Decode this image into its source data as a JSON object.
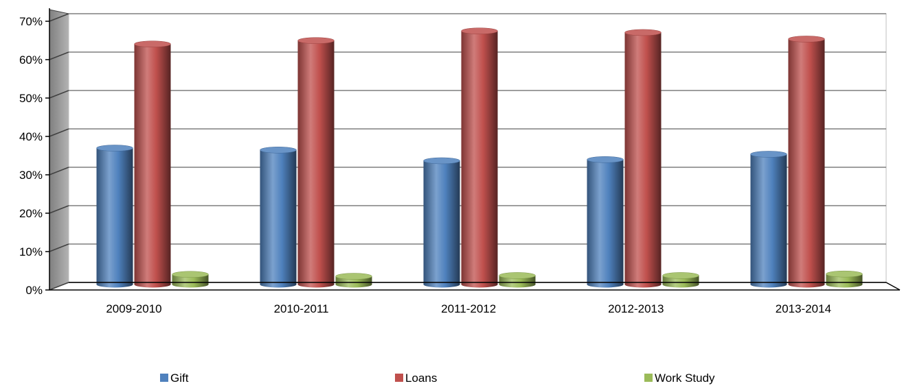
{
  "chart_data": {
    "type": "bar",
    "categories": [
      "2009-2010",
      "2010-2011",
      "2011-2012",
      "2012-2013",
      "2013-2014"
    ],
    "series": [
      {
        "name": "Gift",
        "values": [
          35,
          34.5,
          31.7,
          32,
          33.4
        ],
        "color": "#4F81BD"
      },
      {
        "name": "Loans",
        "values": [
          62.1,
          63,
          65.5,
          65.1,
          63.4
        ],
        "color": "#C0504D"
      },
      {
        "name": "Work Study",
        "values": [
          2.1,
          1.6,
          1.8,
          1.8,
          2.2
        ],
        "color": "#9BBB59"
      }
    ],
    "y_ticks": [
      "0%",
      "10%",
      "20%",
      "30%",
      "40%",
      "50%",
      "60%",
      "70%"
    ],
    "ylim": [
      0,
      70
    ],
    "grid": true,
    "legend_position": "bottom",
    "style": "3d-cylinder"
  }
}
